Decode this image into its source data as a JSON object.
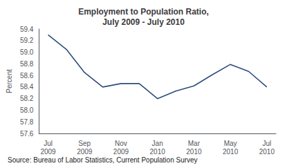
{
  "chart_data": {
    "type": "line",
    "title": "Employment to Population Ratio,\nJuly 2009 - July 2010",
    "ylabel": "Percent",
    "annotations": [
      "Source: Bureau of Labor Statistics, Current Population Survey"
    ],
    "categories": [
      "Jul\n2009",
      null,
      "Sep\n2009",
      null,
      "Nov\n2009",
      null,
      "Jan\n2010",
      null,
      "Mar\n2010",
      null,
      "May\n2010",
      null,
      "Jul\n2010"
    ],
    "values": [
      59.3,
      59.05,
      58.65,
      58.4,
      58.46,
      58.46,
      58.2,
      58.33,
      58.42,
      58.61,
      58.79,
      58.67,
      58.4
    ],
    "color": "#2e4d7b",
    "ylim": [
      57.6,
      59.4
    ],
    "yticks": [
      57.6,
      57.8,
      {
        "value": 58.0,
        "label": "58.0"
      },
      58.2,
      58.4,
      58.6,
      58.8,
      {
        "value": 59.0,
        "label": "59.0"
      },
      59.2,
      59.4
    ],
    "grid": false
  }
}
